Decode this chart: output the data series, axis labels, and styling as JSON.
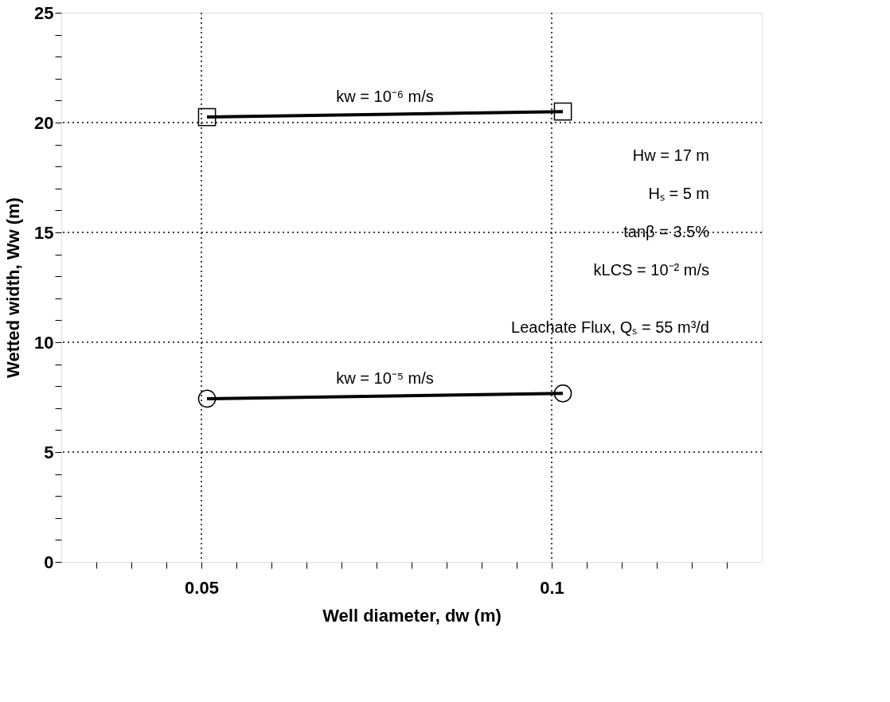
{
  "chart_data": {
    "type": "line",
    "xlabel": "Well diameter, dw (m)",
    "ylabel": "Wetted width, Ww (m)",
    "xlim": [
      0.03,
      0.13
    ],
    "ylim": [
      0,
      25
    ],
    "xticks": [
      {
        "value": 0.035,
        "label": null
      },
      {
        "value": 0.04,
        "label": null
      },
      {
        "value": 0.045,
        "label": null
      },
      {
        "value": 0.05,
        "label": "0.05"
      },
      {
        "value": 0.055,
        "label": null
      },
      {
        "value": 0.06,
        "label": null
      },
      {
        "value": 0.065,
        "label": null
      },
      {
        "value": 0.07,
        "label": null
      },
      {
        "value": 0.075,
        "label": null
      },
      {
        "value": 0.08,
        "label": null
      },
      {
        "value": 0.085,
        "label": null
      },
      {
        "value": 0.09,
        "label": null
      },
      {
        "value": 0.095,
        "label": null
      },
      {
        "value": 0.1,
        "label": "0.1"
      },
      {
        "value": 0.105,
        "label": null
      },
      {
        "value": 0.11,
        "label": null
      },
      {
        "value": 0.115,
        "label": null
      },
      {
        "value": 0.12,
        "label": null
      },
      {
        "value": 0.125,
        "label": null
      }
    ],
    "yticks": [
      0,
      {
        "value": 1,
        "label": null
      },
      {
        "value": 2,
        "label": null
      },
      {
        "value": 3,
        "label": null
      },
      {
        "value": 4,
        "label": null
      },
      5,
      {
        "value": 6,
        "label": null
      },
      {
        "value": 7,
        "label": null
      },
      {
        "value": 8,
        "label": null
      },
      {
        "value": 9,
        "label": null
      },
      10,
      {
        "value": 11,
        "label": null
      },
      {
        "value": 12,
        "label": null
      },
      {
        "value": 13,
        "label": null
      },
      {
        "value": 14,
        "label": null
      },
      15,
      {
        "value": 16,
        "label": null
      },
      {
        "value": 17,
        "label": null
      },
      {
        "value": 18,
        "label": null
      },
      {
        "value": 19,
        "label": null
      },
      20,
      {
        "value": 21,
        "label": null
      },
      {
        "value": 22,
        "label": null
      },
      {
        "value": 23,
        "label": null
      },
      {
        "value": 24,
        "label": null
      },
      25
    ],
    "grid": true,
    "series": [
      {
        "color": "#000000",
        "marker": "square",
        "values": [
          20.25,
          20.5
        ]
      },
      {
        "color": "#000000",
        "marker": "circle",
        "values": [
          7.43,
          7.67
        ]
      }
    ],
    "x": [
      0.0508,
      0.1016
    ],
    "annotations": [
      "kw = 10⁻⁶ m/s",
      "kw = 10⁻⁵ m/s",
      "Hw = 17 m",
      "Hₛ = 5 m",
      "tanβ = 3.5%",
      "kLCS = 10⁻² m/s",
      "Leachate Flux, Qₛ = 55 m³/d"
    ]
  }
}
